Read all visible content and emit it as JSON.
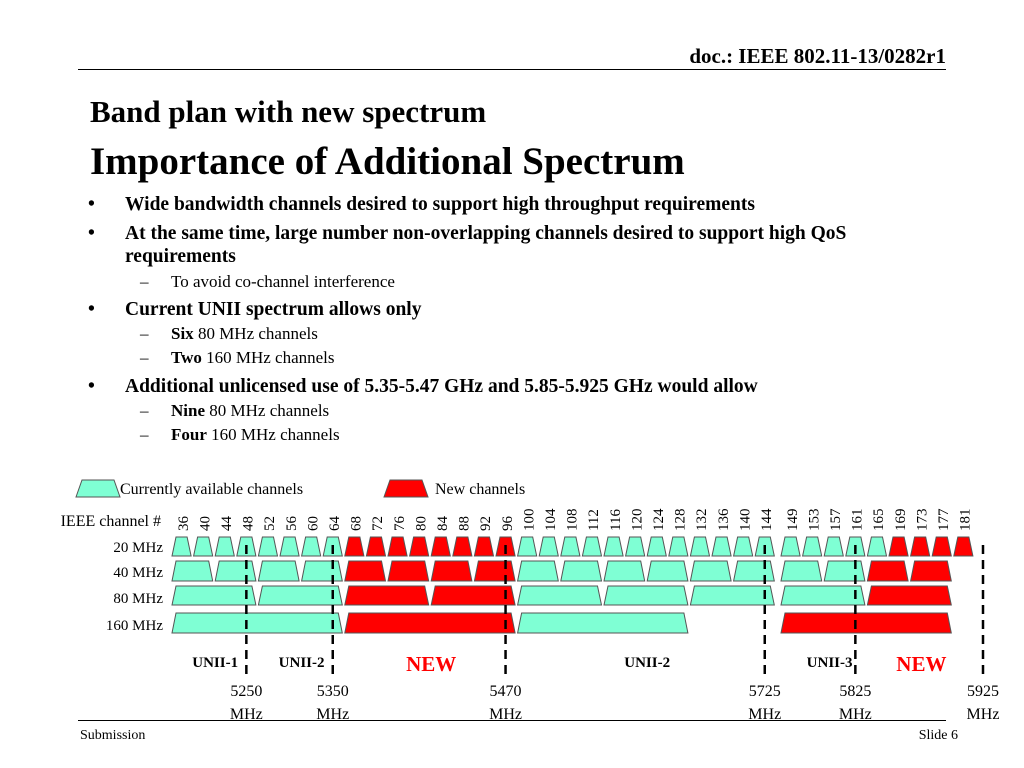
{
  "header": {
    "doc_id": "doc.: IEEE 802.11-13/0282r1"
  },
  "title": {
    "line1": "Band plan with new spectrum",
    "line2": "Importance of Additional Spectrum"
  },
  "bullets": [
    {
      "text": "Wide bandwidth channels desired to support high throughput requirements",
      "subs": []
    },
    {
      "text": "At the same time, large number non-overlapping channels desired to support high QoS requirements",
      "subs": [
        {
          "bold": "",
          "text": "To avoid co-channel interference"
        }
      ]
    },
    {
      "text": "Current UNII spectrum allows only",
      "subs": [
        {
          "bold": "Six",
          "text": " 80 MHz channels"
        },
        {
          "bold": "Two",
          "text": " 160 MHz channels"
        }
      ]
    },
    {
      "text": "Additional unlicensed use of 5.35-5.47 GHz and 5.85-5.925 GHz would allow",
      "subs": [
        {
          "bold": "Nine",
          "text": " 80 MHz channels"
        },
        {
          "bold": "Four",
          "text": " 160 MHz channels"
        }
      ]
    }
  ],
  "bullet_symbol": "•",
  "sub_symbol": "–",
  "legend": {
    "current_label": "Currently available channels",
    "new_label": "New channels"
  },
  "colors": {
    "current": "#7fffd4",
    "new": "#ff0000",
    "outline": "#555555"
  },
  "band_plan": {
    "channel_row_label": "IEEE channel #",
    "channels": [
      36,
      40,
      44,
      48,
      52,
      56,
      60,
      64,
      68,
      72,
      76,
      80,
      84,
      88,
      92,
      96,
      100,
      104,
      108,
      112,
      116,
      120,
      124,
      128,
      132,
      136,
      140,
      144,
      149,
      153,
      157,
      161,
      165,
      169,
      173,
      177,
      181
    ],
    "row_labels": {
      "w20": "20 MHz",
      "w40": "40 MHz",
      "w80": "80 MHz",
      "w160": "160 MHz"
    },
    "channels_20": [
      {
        "ch": 36,
        "type": "current"
      },
      {
        "ch": 40,
        "type": "current"
      },
      {
        "ch": 44,
        "type": "current"
      },
      {
        "ch": 48,
        "type": "current"
      },
      {
        "ch": 52,
        "type": "current"
      },
      {
        "ch": 56,
        "type": "current"
      },
      {
        "ch": 60,
        "type": "current"
      },
      {
        "ch": 64,
        "type": "current"
      },
      {
        "ch": 68,
        "type": "new"
      },
      {
        "ch": 72,
        "type": "new"
      },
      {
        "ch": 76,
        "type": "new"
      },
      {
        "ch": 80,
        "type": "new"
      },
      {
        "ch": 84,
        "type": "new"
      },
      {
        "ch": 88,
        "type": "new"
      },
      {
        "ch": 92,
        "type": "new"
      },
      {
        "ch": 96,
        "type": "new"
      },
      {
        "ch": 100,
        "type": "current"
      },
      {
        "ch": 104,
        "type": "current"
      },
      {
        "ch": 108,
        "type": "current"
      },
      {
        "ch": 112,
        "type": "current"
      },
      {
        "ch": 116,
        "type": "current"
      },
      {
        "ch": 120,
        "type": "current"
      },
      {
        "ch": 124,
        "type": "current"
      },
      {
        "ch": 128,
        "type": "current"
      },
      {
        "ch": 132,
        "type": "current"
      },
      {
        "ch": 136,
        "type": "current"
      },
      {
        "ch": 140,
        "type": "current"
      },
      {
        "ch": 144,
        "type": "current"
      },
      {
        "ch": 149,
        "type": "current"
      },
      {
        "ch": 153,
        "type": "current"
      },
      {
        "ch": 157,
        "type": "current"
      },
      {
        "ch": 161,
        "type": "current"
      },
      {
        "ch": 165,
        "type": "current"
      },
      {
        "ch": 169,
        "type": "new"
      },
      {
        "ch": 173,
        "type": "new"
      },
      {
        "ch": 177,
        "type": "new"
      },
      {
        "ch": 181,
        "type": "new"
      }
    ],
    "channels_40": [
      {
        "from": 36,
        "to": 40,
        "type": "current"
      },
      {
        "from": 44,
        "to": 48,
        "type": "current"
      },
      {
        "from": 52,
        "to": 56,
        "type": "current"
      },
      {
        "from": 60,
        "to": 64,
        "type": "current"
      },
      {
        "from": 68,
        "to": 72,
        "type": "new"
      },
      {
        "from": 76,
        "to": 80,
        "type": "new"
      },
      {
        "from": 84,
        "to": 88,
        "type": "new"
      },
      {
        "from": 92,
        "to": 96,
        "type": "new"
      },
      {
        "from": 100,
        "to": 104,
        "type": "current"
      },
      {
        "from": 108,
        "to": 112,
        "type": "current"
      },
      {
        "from": 116,
        "to": 120,
        "type": "current"
      },
      {
        "from": 124,
        "to": 128,
        "type": "current"
      },
      {
        "from": 132,
        "to": 136,
        "type": "current"
      },
      {
        "from": 140,
        "to": 144,
        "type": "current"
      },
      {
        "from": 149,
        "to": 153,
        "type": "current"
      },
      {
        "from": 157,
        "to": 161,
        "type": "current"
      },
      {
        "from": 165,
        "to": 169,
        "type": "new"
      },
      {
        "from": 173,
        "to": 177,
        "type": "new"
      }
    ],
    "channels_80": [
      {
        "from": 36,
        "to": 48,
        "type": "current"
      },
      {
        "from": 52,
        "to": 64,
        "type": "current"
      },
      {
        "from": 68,
        "to": 80,
        "type": "new"
      },
      {
        "from": 84,
        "to": 96,
        "type": "new"
      },
      {
        "from": 100,
        "to": 112,
        "type": "current"
      },
      {
        "from": 116,
        "to": 128,
        "type": "current"
      },
      {
        "from": 132,
        "to": 144,
        "type": "current"
      },
      {
        "from": 149,
        "to": 161,
        "type": "current"
      },
      {
        "from": 165,
        "to": 177,
        "type": "new"
      }
    ],
    "channels_160": [
      {
        "from": 36,
        "to": 64,
        "type": "current"
      },
      {
        "from": 68,
        "to": 96,
        "type": "new"
      },
      {
        "from": 100,
        "to": 128,
        "type": "current"
      },
      {
        "from": 149,
        "to": 177,
        "type": "new"
      }
    ],
    "bands": [
      {
        "label": "UNII-1",
        "kind": "black",
        "center_ch": 42
      },
      {
        "label": "UNII-2",
        "kind": "black",
        "center_ch": 58
      },
      {
        "label": "NEW",
        "kind": "new",
        "center_ch": 82
      },
      {
        "label": "UNII-2",
        "kind": "black",
        "center_ch": 122
      },
      {
        "label": "UNII-3",
        "kind": "black",
        "center_ch": 156
      },
      {
        "label": "NEW",
        "kind": "new",
        "center_ch": 173
      }
    ],
    "freq_markers": [
      {
        "value": "5250",
        "unit": "MHz",
        "at_ch": 50
      },
      {
        "value": "5350",
        "unit": "MHz",
        "at_ch": 66
      },
      {
        "value": "5470",
        "unit": "MHz",
        "at_ch": 98
      },
      {
        "value": "5725",
        "unit": "MHz",
        "at_ch": 146
      },
      {
        "value": "5825",
        "unit": "MHz",
        "at_ch": 163
      },
      {
        "value": "5925",
        "unit": "MHz",
        "at_ch": 183
      }
    ]
  },
  "footer": {
    "left": "Submission",
    "right": "Slide 6"
  }
}
